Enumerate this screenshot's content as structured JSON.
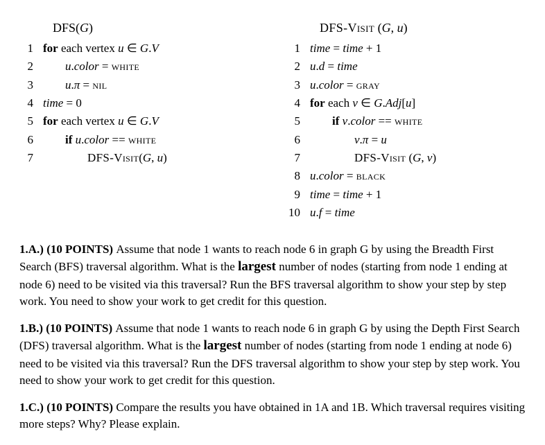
{
  "algorithms": {
    "left": {
      "title_parts": [
        {
          "t": "DFS(",
          "c": ""
        },
        {
          "t": "G",
          "c": "it"
        },
        {
          "t": ")",
          "c": ""
        }
      ],
      "lines": [
        {
          "n": "1",
          "indent": 1,
          "parts": [
            {
              "t": "for",
              "c": "kw"
            },
            {
              "t": " each vertex ",
              "c": ""
            },
            {
              "t": "u",
              "c": "it"
            },
            {
              "t": " ∈ ",
              "c": ""
            },
            {
              "t": "G",
              "c": "it"
            },
            {
              "t": ".",
              "c": ""
            },
            {
              "t": "V",
              "c": "it"
            }
          ]
        },
        {
          "n": "2",
          "indent": 2,
          "parts": [
            {
              "t": "u",
              "c": "it"
            },
            {
              "t": ".",
              "c": ""
            },
            {
              "t": "color",
              "c": "it"
            },
            {
              "t": " = ",
              "c": ""
            },
            {
              "t": "white",
              "c": "sc"
            }
          ]
        },
        {
          "n": "3",
          "indent": 2,
          "parts": [
            {
              "t": "u",
              "c": "it"
            },
            {
              "t": ".",
              "c": ""
            },
            {
              "t": "π",
              "c": "it"
            },
            {
              "t": " = ",
              "c": ""
            },
            {
              "t": "nil",
              "c": "sc"
            }
          ]
        },
        {
          "n": "4",
          "indent": 1,
          "parts": [
            {
              "t": "time",
              "c": "it"
            },
            {
              "t": " = 0",
              "c": ""
            }
          ]
        },
        {
          "n": "5",
          "indent": 1,
          "parts": [
            {
              "t": "for",
              "c": "kw"
            },
            {
              "t": " each vertex ",
              "c": ""
            },
            {
              "t": "u",
              "c": "it"
            },
            {
              "t": " ∈ ",
              "c": ""
            },
            {
              "t": "G",
              "c": "it"
            },
            {
              "t": ".",
              "c": ""
            },
            {
              "t": "V",
              "c": "it"
            }
          ]
        },
        {
          "n": "6",
          "indent": 2,
          "parts": [
            {
              "t": "if",
              "c": "kw"
            },
            {
              "t": " ",
              "c": ""
            },
            {
              "t": "u",
              "c": "it"
            },
            {
              "t": ".",
              "c": ""
            },
            {
              "t": "color",
              "c": "it"
            },
            {
              "t": " == ",
              "c": ""
            },
            {
              "t": "white",
              "c": "sc"
            }
          ]
        },
        {
          "n": "7",
          "indent": 3,
          "parts": [
            {
              "t": "DFS-Visit",
              "c": "sc"
            },
            {
              "t": "(",
              "c": ""
            },
            {
              "t": "G",
              "c": "it"
            },
            {
              "t": ", ",
              "c": ""
            },
            {
              "t": "u",
              "c": "it"
            },
            {
              "t": ")",
              "c": ""
            }
          ]
        }
      ]
    },
    "right": {
      "title_parts": [
        {
          "t": "DFS-Visit",
          "c": "sc"
        },
        {
          "t": " (",
          "c": ""
        },
        {
          "t": "G",
          "c": "it"
        },
        {
          "t": ", ",
          "c": ""
        },
        {
          "t": "u",
          "c": "it"
        },
        {
          "t": ")",
          "c": ""
        }
      ],
      "lines": [
        {
          "n": "1",
          "indent": 1,
          "parts": [
            {
              "t": "time",
              "c": "it"
            },
            {
              "t": " = ",
              "c": ""
            },
            {
              "t": "time",
              "c": "it"
            },
            {
              "t": " + 1",
              "c": ""
            }
          ]
        },
        {
          "n": "2",
          "indent": 1,
          "parts": [
            {
              "t": "u",
              "c": "it"
            },
            {
              "t": ".",
              "c": ""
            },
            {
              "t": "d",
              "c": "it"
            },
            {
              "t": " = ",
              "c": ""
            },
            {
              "t": "time",
              "c": "it"
            }
          ]
        },
        {
          "n": "3",
          "indent": 1,
          "parts": [
            {
              "t": "u",
              "c": "it"
            },
            {
              "t": ".",
              "c": ""
            },
            {
              "t": "color",
              "c": "it"
            },
            {
              "t": " = ",
              "c": ""
            },
            {
              "t": "gray",
              "c": "sc"
            }
          ]
        },
        {
          "n": "4",
          "indent": 1,
          "parts": [
            {
              "t": "for",
              "c": "kw"
            },
            {
              "t": " each ",
              "c": ""
            },
            {
              "t": "v",
              "c": "it"
            },
            {
              "t": " ∈ ",
              "c": ""
            },
            {
              "t": "G",
              "c": "it"
            },
            {
              "t": ".",
              "c": ""
            },
            {
              "t": "Adj",
              "c": "it"
            },
            {
              "t": "[",
              "c": ""
            },
            {
              "t": "u",
              "c": "it"
            },
            {
              "t": "]",
              "c": ""
            }
          ]
        },
        {
          "n": "5",
          "indent": 2,
          "parts": [
            {
              "t": "if",
              "c": "kw"
            },
            {
              "t": " ",
              "c": ""
            },
            {
              "t": "v",
              "c": "it"
            },
            {
              "t": ".",
              "c": ""
            },
            {
              "t": "color",
              "c": "it"
            },
            {
              "t": " == ",
              "c": ""
            },
            {
              "t": "white",
              "c": "sc"
            }
          ]
        },
        {
          "n": "6",
          "indent": 3,
          "parts": [
            {
              "t": "v",
              "c": "it"
            },
            {
              "t": ".",
              "c": ""
            },
            {
              "t": "π",
              "c": "it"
            },
            {
              "t": " = ",
              "c": ""
            },
            {
              "t": "u",
              "c": "it"
            }
          ]
        },
        {
          "n": "7",
          "indent": 3,
          "parts": [
            {
              "t": "DFS-Visit",
              "c": "sc"
            },
            {
              "t": " (",
              "c": ""
            },
            {
              "t": "G",
              "c": "it"
            },
            {
              "t": ", ",
              "c": ""
            },
            {
              "t": "v",
              "c": "it"
            },
            {
              "t": ")",
              "c": ""
            }
          ]
        },
        {
          "n": "8",
          "indent": 1,
          "parts": [
            {
              "t": "u",
              "c": "it"
            },
            {
              "t": ".",
              "c": ""
            },
            {
              "t": "color",
              "c": "it"
            },
            {
              "t": " = ",
              "c": ""
            },
            {
              "t": "black",
              "c": "sc"
            }
          ]
        },
        {
          "n": "9",
          "indent": 1,
          "parts": [
            {
              "t": "time",
              "c": "it"
            },
            {
              "t": " = ",
              "c": ""
            },
            {
              "t": "time",
              "c": "it"
            },
            {
              "t": " + 1",
              "c": ""
            }
          ]
        },
        {
          "n": "10",
          "indent": 1,
          "parts": [
            {
              "t": "u",
              "c": "it"
            },
            {
              "t": ".",
              "c": ""
            },
            {
              "t": "f",
              "c": "it"
            },
            {
              "t": " = ",
              "c": ""
            },
            {
              "t": "time",
              "c": "it"
            }
          ]
        }
      ]
    }
  },
  "questions": {
    "a": {
      "label": "1.A.) (10 POINTS) ",
      "pre": "Assume that node 1 wants to reach node 6 in graph G by using the Breadth First Search (BFS) traversal algorithm. What is the ",
      "largest": "largest",
      "post": " number of nodes (starting from node 1 ending at node 6) need to be visited via this traversal? Run the BFS traversal algorithm to show your step by step work. You need to show your work to get credit for this question."
    },
    "b": {
      "label": "1.B.) (10 POINTS) ",
      "pre": "Assume that node 1 wants to reach node 6 in graph G by using the Depth First Search (DFS) traversal algorithm. What is the ",
      "largest": "largest",
      "post": " number of nodes (starting from node 1 ending at node 6) need to be visited via this traversal? Run the DFS traversal algorithm to show your step by step work. You need to show your work to get credit for this question."
    },
    "c": {
      "label": "1.C.) (10 POINTS) ",
      "text": "Compare the results you have obtained in 1A and 1B. Which traversal requires visiting more steps? Why? Please explain."
    }
  }
}
